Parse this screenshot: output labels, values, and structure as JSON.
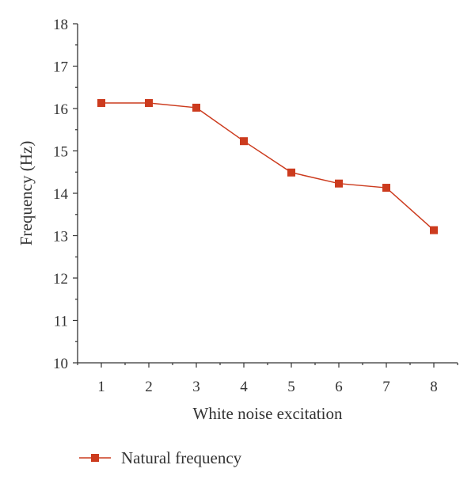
{
  "chart_data": {
    "type": "line",
    "x": [
      1,
      2,
      3,
      4,
      5,
      6,
      7,
      8
    ],
    "xlabel": "White noise excitation",
    "ylabel": "Frequency (Hz)",
    "xlim": [
      0.5,
      8.5
    ],
    "ylim": [
      10,
      18
    ],
    "xticks": [
      1,
      2,
      3,
      4,
      5,
      6,
      7,
      8
    ],
    "yticks": [
      10,
      11,
      12,
      13,
      14,
      15,
      16,
      17,
      18
    ],
    "grid": false,
    "legend_position": "bottom-left",
    "series": [
      {
        "name": "Natural frequency",
        "color": "#cc3b1e",
        "marker": "square",
        "values": [
          16.13,
          16.13,
          16.02,
          15.23,
          14.49,
          14.23,
          14.13,
          13.13
        ]
      }
    ]
  }
}
